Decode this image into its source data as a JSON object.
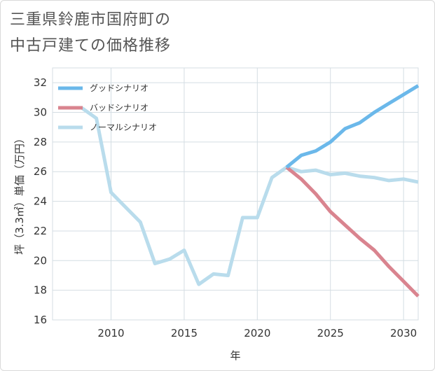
{
  "title": {
    "line1": "三重県鈴鹿市国府町の",
    "line2": "中古戸建ての価格推移"
  },
  "chart_data": {
    "type": "line",
    "title": "三重県鈴鹿市国府町の中古戸建ての価格推移",
    "xlabel": "年",
    "ylabel": "坪（3.3㎡）単価（万円）",
    "xlim": [
      2006,
      2031
    ],
    "ylim": [
      16,
      33
    ],
    "xticks": [
      2010,
      2015,
      2020,
      2025,
      2030
    ],
    "yticks": [
      16,
      18,
      20,
      22,
      24,
      26,
      28,
      30,
      32
    ],
    "grid": true,
    "legend_position": "top-left",
    "series": [
      {
        "name": "グッドシナリオ",
        "color": "#6bb8ea",
        "x": [
          2022,
          2023,
          2024,
          2025,
          2026,
          2027,
          2028,
          2029,
          2030,
          2031
        ],
        "y": [
          26.3,
          27.1,
          27.4,
          28.0,
          28.9,
          29.3,
          30.0,
          30.6,
          31.2,
          31.8
        ]
      },
      {
        "name": "バッドシナリオ",
        "color": "#d9848f",
        "x": [
          2022,
          2023,
          2024,
          2025,
          2026,
          2027,
          2028,
          2029,
          2030,
          2031
        ],
        "y": [
          26.3,
          25.5,
          24.5,
          23.3,
          22.4,
          21.5,
          20.7,
          19.6,
          18.6,
          17.6
        ]
      },
      {
        "name": "ノーマルシナリオ",
        "color": "#b9dcec",
        "x": [
          2008,
          2009,
          2010,
          2011,
          2012,
          2013,
          2014,
          2015,
          2016,
          2017,
          2018,
          2019,
          2020,
          2021,
          2022,
          2023,
          2024,
          2025,
          2026,
          2027,
          2028,
          2029,
          2030,
          2031
        ],
        "y": [
          30.3,
          29.6,
          24.6,
          23.6,
          22.6,
          19.8,
          20.1,
          20.7,
          18.4,
          19.1,
          19.0,
          22.9,
          22.9,
          25.6,
          26.3,
          26.0,
          26.1,
          25.8,
          25.9,
          25.7,
          25.6,
          25.4,
          25.5,
          25.3
        ]
      }
    ]
  }
}
